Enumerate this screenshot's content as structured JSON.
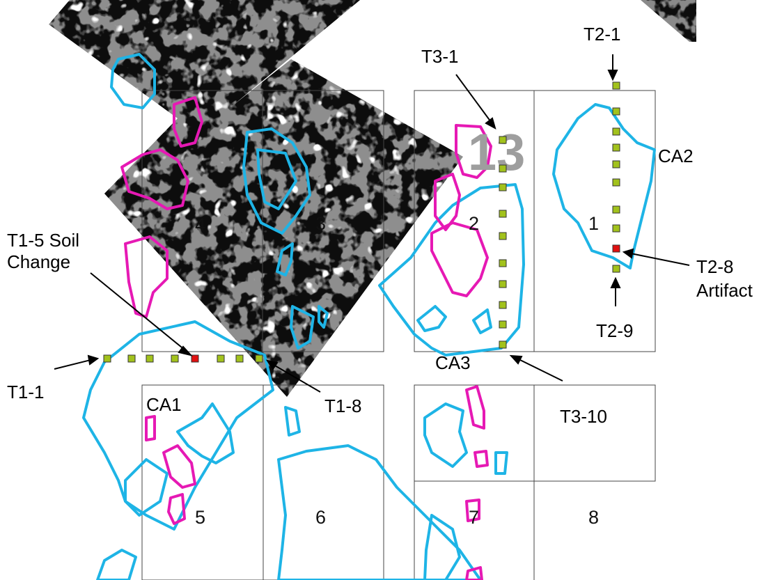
{
  "grid_block_numbers": [
    "4",
    "3",
    "2",
    "1",
    "5",
    "6",
    "7",
    "8"
  ],
  "overlay_number": "13",
  "transect_labels": {
    "t1_1": "T1-1",
    "t1_5": "T1-5 Soil",
    "t1_5_line2": "Change",
    "t1_8": "T1-8",
    "t2_1": "T2-1",
    "t2_8": "T2-8",
    "t2_8_line2": "Artifact",
    "t2_9": "T2-9",
    "t3_1": "T3-1",
    "t3_10": "T3-10"
  },
  "area_labels": {
    "ca1": "CA1",
    "ca2": "CA2",
    "ca3": "CA3"
  },
  "colors": {
    "cyan_outline": "#1eb4e6",
    "magenta_outline": "#e619b4",
    "test_point": "#a2c21c",
    "artifact_point": "#e01010",
    "grid_line": "#444444"
  }
}
